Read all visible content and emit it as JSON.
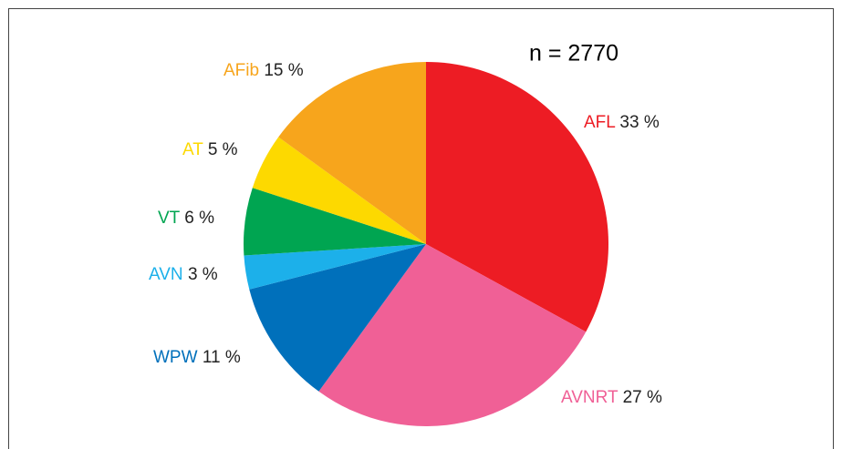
{
  "chart_data": {
    "type": "pie",
    "annotation": "n = 2770",
    "categories": [
      "AFL",
      "AVNRT",
      "WPW",
      "AVN",
      "VT",
      "AT",
      "AFib"
    ],
    "values": [
      33,
      27,
      11,
      3,
      6,
      5,
      15
    ],
    "value_labels": [
      "33 %",
      "27 %",
      "11 %",
      "3 %",
      "6 %",
      "5 %",
      "15 %"
    ],
    "colors": [
      "#ed1c24",
      "#f06096",
      "#0070bb",
      "#1cb0ea",
      "#00a551",
      "#fdd900",
      "#f7a51c"
    ]
  }
}
